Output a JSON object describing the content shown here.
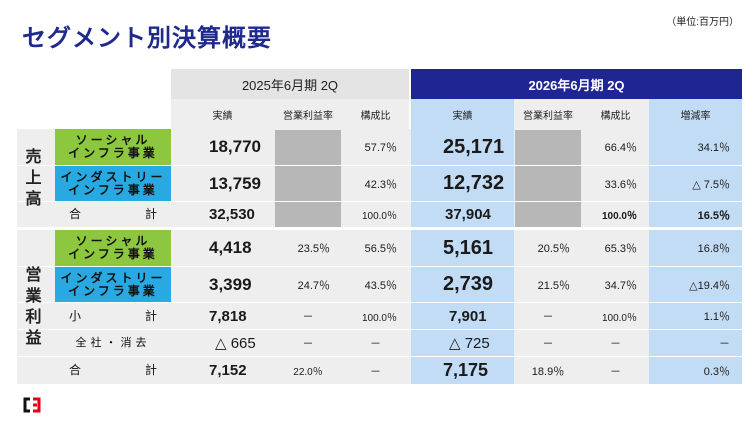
{
  "title": "セグメント別決算概要",
  "unit": "（単位:百万円）",
  "header": {
    "prev_period": "2025年6月期 2Q",
    "cur_period": "2026年6月期 2Q",
    "prev_cols": [
      "実績",
      "営業利益率",
      "構成比"
    ],
    "cur_cols": [
      "実績",
      "営業利益率",
      "構成比",
      "増減率"
    ]
  },
  "groups": {
    "sales": [
      "売",
      "上",
      "高"
    ],
    "op": [
      "営",
      "業",
      "利",
      "益"
    ]
  },
  "rows": [
    {
      "label1": "ソーシャル",
      "label2": "インフラ事業",
      "prev_actual": "18,770",
      "prev_margin": "",
      "prev_ratio": "57.7％",
      "cur_actual": "25,171",
      "cur_margin": "",
      "cur_ratio": "66.4％",
      "change": "34.1％"
    },
    {
      "label1": "インダストリー",
      "label2": "インフラ事業",
      "prev_actual": "13,759",
      "prev_margin": "",
      "prev_ratio": "42.3％",
      "cur_actual": "12,732",
      "cur_margin": "",
      "cur_ratio": "33.6％",
      "change": "△ 7.5％"
    },
    {
      "label1": "合",
      "label2": "計",
      "prev_actual": "32,530",
      "prev_margin": "",
      "prev_ratio": "100.0％",
      "cur_actual": "37,904",
      "cur_margin": "",
      "cur_ratio": "100.0％",
      "change": "16.5％"
    },
    {
      "label1": "ソーシャル",
      "label2": "インフラ事業",
      "prev_actual": "4,418",
      "prev_margin": "23.5％",
      "prev_ratio": "56.5％",
      "cur_actual": "5,161",
      "cur_margin": "20.5％",
      "cur_ratio": "65.3％",
      "change": "16.8％"
    },
    {
      "label1": "インダストリー",
      "label2": "インフラ事業",
      "prev_actual": "3,399",
      "prev_margin": "24.7％",
      "prev_ratio": "43.5％",
      "cur_actual": "2,739",
      "cur_margin": "21.5％",
      "cur_ratio": "34.7％",
      "change": "△19.4％"
    },
    {
      "label1": "小",
      "label2": "計",
      "prev_actual": "7,818",
      "prev_margin": "－",
      "prev_ratio": "100.0％",
      "cur_actual": "7,901",
      "cur_margin": "－",
      "cur_ratio": "100.0％",
      "change": "1.1％"
    },
    {
      "label1": "全社・消去",
      "label2": "",
      "prev_actual": "△ 665",
      "prev_margin": "－",
      "prev_ratio": "－",
      "cur_actual": "△ 725",
      "cur_margin": "－",
      "cur_ratio": "－",
      "change": "－"
    },
    {
      "label1": "合",
      "label2": "計",
      "prev_actual": "7,152",
      "prev_margin": "22.0％",
      "prev_ratio": "－",
      "cur_actual": "7,175",
      "cur_margin": "18.9％",
      "cur_ratio": "－",
      "change": "0.3％"
    }
  ],
  "colors": {
    "title": "#1f2a8c",
    "cur_header": "#1f2694",
    "highlight": "#c3dcf5",
    "social": "#8dc63f",
    "industry": "#29a9e1"
  },
  "logo": "company-logo-icon"
}
